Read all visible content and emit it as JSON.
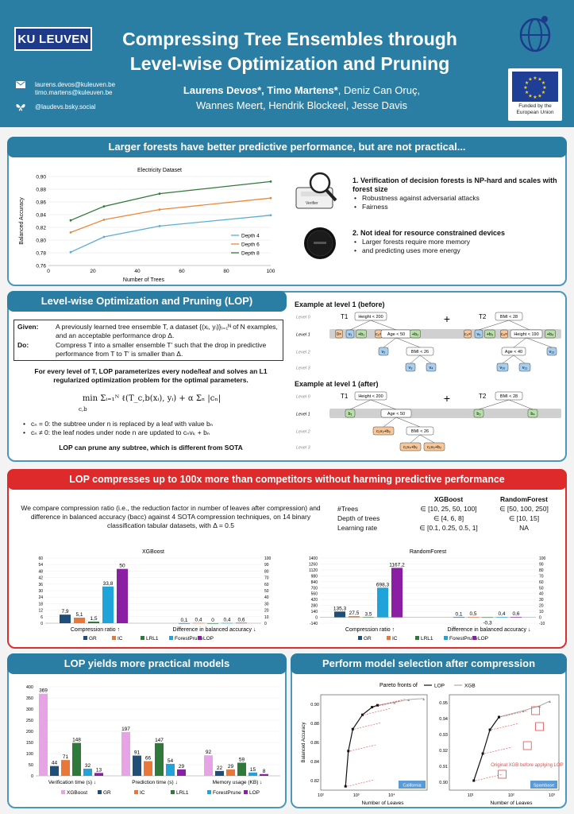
{
  "header": {
    "logo": "KU LEUVEN",
    "title_line1": "Compressing Tree Ensembles through",
    "title_line2": "Level-wise Optimization and Pruning",
    "email1": "laurens.devos@kuleuven.be",
    "email2": "timo.martens@kuleuven.be",
    "bsky": "@laudevs.bsky.social",
    "authors_bold": "Laurens Devos*, Timo Martens*",
    "authors_rest1": ", Deniz Can Oruç,",
    "authors_line2": "Wannes Meert, Hendrik Blockeel, Jesse Davis",
    "eu_text": "Funded by the European Union",
    "colors": {
      "header_bg": "#2b7ea3",
      "banner_red": "#de2a2a"
    }
  },
  "section1": {
    "banner": "Larger forests have better predictive performance, but are not practical...",
    "point1_title": "1. Verification of decision forests is NP-hard and scales with forest size",
    "point1_bullets": [
      "Robustness against adversarial attacks",
      "Fairness"
    ],
    "point2_title": "2. Not ideal for resource constrained devices",
    "point2_bullets": [
      "Larger forests require more memory",
      "and predicting uses more energy"
    ],
    "verifier_label": "Verifier"
  },
  "section2": {
    "banner": "Level-wise Optimization and Pruning (LOP)",
    "given_label": "Given:",
    "given_text": "A previously learned tree ensemble T, a dataset {(xᵢ, yᵢ)}ᵢ₌₁ᴺ of N examples, and an acceptable performance drop Δ.",
    "do_label": "Do:",
    "do_text": "Compress T into a smaller ensemble T′ such that the drop in predictive performance from T to T′ is smaller than Δ.",
    "para": "For every level of T, LOP parameterizes every node/leaf and solves an L1 regularized optimization problem for the optimal parameters.",
    "formula": "min Σᵢ₌₁ᴺ ℓ(T_c,b(xᵢ), yᵢ) + α Σₙ |cₙ|",
    "formula_sub": "c,b",
    "bullet1": "cₙ = 0: the subtree under n is replaced by a leaf with value bₙ",
    "bullet2": "cₙ ≠ 0: the leaf nodes under node n are updated to cₙvₖ + bₙ",
    "closing": "LOP can prune any subtree, which is different from SOTA",
    "example_before": "Example at level 1 (before)",
    "example_after": "Example at level 1 (after)",
    "levels": [
      "Level 0",
      "Level 1",
      "Level 2",
      "Level 3"
    ],
    "tree_labels": [
      "T1",
      "T2"
    ],
    "plus": "+",
    "nodes": {
      "height": "Height < 200",
      "bmi28": "BMI < 28",
      "age50": "Age < 50",
      "height190": "Height < 190",
      "bmi26": "BMI < 26",
      "age40": "Age < 40",
      "v1": "v₁",
      "v2": "v₂",
      "v3": "v₃",
      "v4": "v₄",
      "v5": "v₅",
      "v8": "v₈",
      "v9": "v₉",
      "v10": "v₁₀",
      "v11": "v₁₁",
      "v12": "v₁₂",
      "b1": "b₁",
      "b3": "b₃",
      "b4": "b₄",
      "c_v": "c₁v₃+b₂",
      "c_v4": "c₁v₄+b₂",
      "c_v5": "c₁v₅+b₂",
      "c0x": "0×",
      "plus_b1": "+b₁",
      "c2x": "c₂×",
      "plus_b2": "+b₂",
      "c3x": "c₃×",
      "plus_b3": "+b₃",
      "c4x": "c₄×",
      "plus_b4": "+b₄"
    }
  },
  "section3": {
    "banner": "LOP compresses up to 100x more than competitors without harming predictive performance",
    "intro": "We compare compression ratio (i.e., the reduction factor in number of leaves after compression) and difference in balanced accuracy (bacc) against 4 SOTA compression techniques, on 14 binary classification tabular datasets, with Δ = 0.5",
    "table": {
      "headers": [
        "",
        "XGBoost",
        "RandomForest"
      ],
      "rows": [
        [
          "#Trees",
          "∈ [10, 25, 50, 100]",
          "∈ [50, 100, 250]"
        ],
        [
          "Depth of trees",
          "∈ [4, 6, 8]",
          "∈ [10, 15]"
        ],
        [
          "Learning rate",
          "∈ [0.1, 0.25, 0.5, 1]",
          "NA"
        ]
      ]
    },
    "xlabel_left": "Compression ratio ↑",
    "xlabel_right": "Difference in balanced accuracy ↓"
  },
  "section4": {
    "banner": "LOP yields more practical models",
    "groups": [
      "Verification time (s) ↓",
      "Prediction time (s) ↓",
      "Memory usage (KB) ↓"
    ]
  },
  "section5": {
    "banner": "Perform model selection after compression",
    "pareto_title": "Pareto fronts of",
    "annotation": "Original XGB before applying LOP",
    "ylabel": "Balanced Accuracy",
    "xlabel": "Number of Leaves",
    "dataset_left": "California",
    "dataset_right": "Spambase"
  },
  "chart_data": [
    {
      "type": "line",
      "title": "Electricity Dataset",
      "xlabel": "Number of Trees",
      "ylabel": "Balanced Accuracy",
      "x": [
        10,
        25,
        50,
        100
      ],
      "xlim": [
        0,
        100
      ],
      "xticks": [
        0,
        20,
        40,
        60,
        80,
        100
      ],
      "ylim": [
        0.76,
        0.9
      ],
      "yticks": [
        "0,76",
        "0,78",
        "0,80",
        "0,82",
        "0,84",
        "0,86",
        "0,88",
        "0,90"
      ],
      "legend": "right",
      "series": [
        {
          "name": "Depth 4",
          "color": "#5aaed8",
          "values": [
            0.781,
            0.805,
            0.822,
            0.839
          ]
        },
        {
          "name": "Depth 6",
          "color": "#e88a3c",
          "values": [
            0.812,
            0.832,
            0.848,
            0.866
          ]
        },
        {
          "name": "Depth 8",
          "color": "#2f7a3a",
          "values": [
            0.831,
            0.853,
            0.873,
            0.892
          ]
        }
      ]
    },
    {
      "type": "bar",
      "title": "XGBoost",
      "groups": [
        "Compression ratio ↑",
        "Difference in balanced accuracy ↓"
      ],
      "series_names": [
        "GR",
        "IC",
        "LRL1",
        "ForestPrune",
        "LOP"
      ],
      "colors": [
        "#1f4e79",
        "#e8773a",
        "#2f7a3a",
        "#1fa3d9",
        "#8b1fa3"
      ],
      "compression": [
        7.9,
        5.1,
        1.5,
        33.8,
        50
      ],
      "compression_labels": [
        "7,9",
        "5,1",
        "1,5",
        "33,8",
        "50"
      ],
      "bacc": [
        0.1,
        0.4,
        0,
        0.4,
        0.6
      ],
      "bacc_labels": [
        "0,1",
        "0,4",
        "0",
        "0,4",
        "0,6"
      ],
      "yleft": [
        0,
        60
      ],
      "yleft_ticks": [
        "0",
        "6",
        "12",
        "18",
        "24",
        "30",
        "36",
        "42",
        "48",
        "54",
        "60"
      ],
      "yright": [
        0,
        100
      ],
      "yright_ticks": [
        "0",
        "10",
        "20",
        "30",
        "40",
        "50",
        "60",
        "70",
        "80",
        "90",
        "100"
      ]
    },
    {
      "type": "bar",
      "title": "RandomForest",
      "groups": [
        "Compression ratio ↑",
        "Difference in balanced accuracy ↓"
      ],
      "series_names": [
        "GR",
        "IC",
        "LRL1",
        "ForestPrune",
        "LOP"
      ],
      "colors": [
        "#1f4e79",
        "#e8773a",
        "#2f7a3a",
        "#1fa3d9",
        "#8b1fa3"
      ],
      "compression": [
        135.3,
        27.5,
        3.5,
        698.3,
        1167.2
      ],
      "compression_labels": [
        "135,3",
        "27,5",
        "3,5",
        "698,3",
        "1167,2"
      ],
      "bacc": [
        0.1,
        0.5,
        -0.3,
        0.4,
        0.6
      ],
      "bacc_labels": [
        "0,1",
        "0,5",
        "-0,3",
        "0,4",
        "0,6"
      ],
      "yleft": [
        -140,
        1400
      ],
      "yleft_ticks": [
        "-140",
        "0",
        "140",
        "280",
        "420",
        "560",
        "700",
        "840",
        "980",
        "1120",
        "1260",
        "1400"
      ],
      "yright": [
        -10,
        100
      ],
      "yright_ticks": [
        "-10",
        "0",
        "10",
        "20",
        "30",
        "40",
        "50",
        "60",
        "70",
        "80",
        "90",
        "100"
      ]
    },
    {
      "type": "bar",
      "series_names": [
        "XGBoost",
        "GR",
        "IC",
        "LRL1",
        "ForestPrune",
        "LOP"
      ],
      "colors": [
        "#e6a3e6",
        "#1f4e79",
        "#e8773a",
        "#2f7a3a",
        "#1fa3d9",
        "#8b1fa3"
      ],
      "groups": [
        "Verification time (s) ↓",
        "Prediction time (s) ↓",
        "Memory usage (KB) ↓"
      ],
      "values": [
        [
          369,
          44,
          71,
          148,
          32,
          13
        ],
        [
          197,
          91,
          66,
          147,
          54,
          29
        ],
        [
          92,
          22,
          29,
          59,
          15,
          8
        ]
      ],
      "ylim": [
        0,
        400
      ],
      "yticks": [
        "0",
        "50",
        "100",
        "150",
        "200",
        "250",
        "300",
        "350",
        "400"
      ]
    },
    {
      "type": "line",
      "title": "California",
      "xlabel": "Number of Leaves",
      "ylabel": "Balanced Accuracy",
      "xscale": "log",
      "xlim": [
        10,
        10000
      ],
      "xticks": [
        "10²",
        "10³",
        "10⁴"
      ],
      "ylim": [
        0.81,
        0.91
      ],
      "yticks": [
        "0.82",
        "0.84",
        "0.86",
        "0.88",
        "0.90"
      ],
      "series": [
        {
          "name": "LOP",
          "x": [
            50,
            60,
            80,
            150,
            280,
            400
          ],
          "y": [
            0.814,
            0.851,
            0.874,
            0.889,
            0.897,
            0.899
          ]
        },
        {
          "name": "XGB",
          "x": [
            400,
            1200,
            3000,
            8000
          ],
          "y": [
            0.899,
            0.902,
            0.905,
            0.906
          ]
        }
      ]
    },
    {
      "type": "line",
      "title": "Spambase",
      "xlabel": "Number of Leaves",
      "xscale": "log",
      "xlim": [
        3,
        1500
      ],
      "xticks": [
        "10¹",
        "10²",
        "10³"
      ],
      "ylim": [
        0.895,
        0.955
      ],
      "yticks": [
        "0.90",
        "0.91",
        "0.92",
        "0.93",
        "0.94",
        "0.95"
      ],
      "series": [
        {
          "name": "LOP",
          "x": [
            12,
            20,
            30,
            50
          ],
          "y": [
            0.901,
            0.918,
            0.933,
            0.941
          ]
        },
        {
          "name": "XGB",
          "x": [
            50,
            200,
            500,
            900
          ],
          "y": [
            0.941,
            0.945,
            0.948,
            0.951
          ]
        }
      ]
    }
  ]
}
